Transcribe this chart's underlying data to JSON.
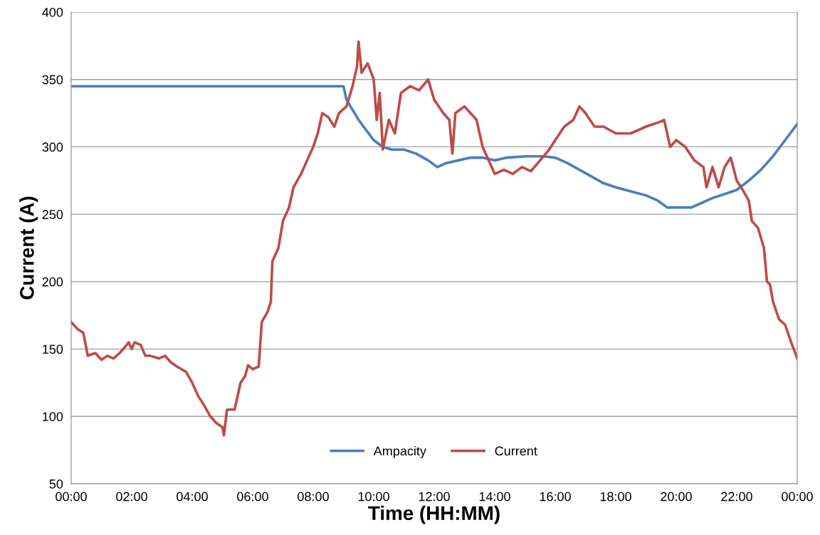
{
  "chart_data": {
    "type": "line",
    "xlabel": "Time (HH:MM)",
    "ylabel": "Current (A)",
    "xlim": [
      0,
      24
    ],
    "ylim": [
      50,
      400
    ],
    "xticks": [
      {
        "value": 0,
        "label": "00:00"
      },
      {
        "value": 2,
        "label": "02:00"
      },
      {
        "value": 4,
        "label": "04:00"
      },
      {
        "value": 6,
        "label": "06:00"
      },
      {
        "value": 8,
        "label": "08:00"
      },
      {
        "value": 10,
        "label": "10:00"
      },
      {
        "value": 12,
        "label": "12:00"
      },
      {
        "value": 14,
        "label": "14:00"
      },
      {
        "value": 16,
        "label": "16:00"
      },
      {
        "value": 18,
        "label": "18:00"
      },
      {
        "value": 20,
        "label": "20:00"
      },
      {
        "value": 22,
        "label": "22:00"
      },
      {
        "value": 24,
        "label": "00:00"
      }
    ],
    "yticks": [
      50,
      100,
      150,
      200,
      250,
      300,
      350,
      400
    ],
    "grid": "y",
    "legend": "bottom",
    "marker": "none",
    "line_style": "solid",
    "series": [
      {
        "name": "Ampacity",
        "color": "#4a7ebb",
        "x": [
          0,
          9,
          9.1,
          9.5,
          10,
          10.3,
          10.6,
          11,
          11.4,
          11.8,
          12.1,
          12.4,
          12.8,
          13.2,
          13.6,
          14,
          14.4,
          15,
          15.6,
          16,
          16.4,
          16.8,
          17.2,
          17.6,
          18,
          18.5,
          19,
          19.4,
          19.7,
          20.5,
          20.8,
          21.2,
          21.6,
          22,
          22.4,
          22.8,
          23.2,
          23.6,
          24
        ],
        "values": [
          345,
          345,
          335,
          320,
          305,
          300,
          298,
          298,
          295,
          290,
          285,
          288,
          290,
          292,
          292,
          290,
          292,
          293,
          293,
          292,
          288,
          283,
          278,
          273,
          270,
          267,
          264,
          260,
          255,
          255,
          258,
          262,
          265,
          268,
          275,
          283,
          293,
          305,
          317
        ]
      },
      {
        "name": "Current",
        "color": "#be4b48",
        "x": [
          0,
          0.2,
          0.4,
          0.55,
          0.8,
          1.0,
          1.2,
          1.4,
          1.6,
          1.8,
          1.9,
          2.0,
          2.1,
          2.3,
          2.45,
          2.6,
          2.9,
          3.1,
          3.3,
          3.5,
          3.8,
          4.0,
          4.2,
          4.4,
          4.6,
          4.8,
          5.0,
          5.05,
          5.15,
          5.4,
          5.6,
          5.75,
          5.85,
          6.0,
          6.2,
          6.3,
          6.5,
          6.6,
          6.65,
          6.85,
          7.0,
          7.2,
          7.35,
          7.6,
          7.8,
          8.0,
          8.15,
          8.3,
          8.5,
          8.7,
          8.85,
          9.1,
          9.3,
          9.45,
          9.5,
          9.6,
          9.8,
          10.0,
          10.1,
          10.2,
          10.3,
          10.5,
          10.7,
          10.9,
          11.2,
          11.5,
          11.8,
          12.0,
          12.3,
          12.5,
          12.6,
          12.7,
          13.0,
          13.2,
          13.4,
          13.6,
          13.8,
          14.0,
          14.3,
          14.6,
          14.9,
          15.2,
          15.5,
          15.8,
          16.0,
          16.3,
          16.6,
          16.8,
          17.0,
          17.3,
          17.6,
          18.0,
          18.5,
          19.0,
          19.4,
          19.6,
          19.8,
          20.0,
          20.3,
          20.6,
          20.9,
          21.0,
          21.2,
          21.4,
          21.6,
          21.8,
          22.0,
          22.2,
          22.4,
          22.5,
          22.7,
          22.9,
          23.0,
          23.1,
          23.2,
          23.4,
          23.6,
          23.8,
          24.0
        ],
        "values": [
          170,
          165,
          162,
          145,
          147,
          142,
          145,
          143,
          147,
          152,
          155,
          150,
          155,
          153,
          145,
          145,
          143,
          145,
          140,
          137,
          133,
          125,
          115,
          108,
          100,
          95,
          92,
          86,
          105,
          105,
          125,
          130,
          138,
          135,
          137,
          170,
          178,
          185,
          215,
          225,
          245,
          255,
          270,
          280,
          290,
          300,
          310,
          325,
          322,
          315,
          325,
          330,
          345,
          360,
          378,
          355,
          362,
          350,
          320,
          340,
          298,
          320,
          310,
          340,
          345,
          342,
          350,
          335,
          325,
          320,
          295,
          325,
          330,
          325,
          320,
          300,
          290,
          280,
          283,
          280,
          285,
          282,
          290,
          298,
          305,
          315,
          320,
          330,
          325,
          315,
          315,
          310,
          310,
          315,
          318,
          320,
          300,
          305,
          300,
          290,
          285,
          270,
          285,
          270,
          285,
          292,
          275,
          268,
          260,
          245,
          240,
          225,
          200,
          198,
          185,
          172,
          168,
          155,
          143
        ]
      }
    ]
  }
}
